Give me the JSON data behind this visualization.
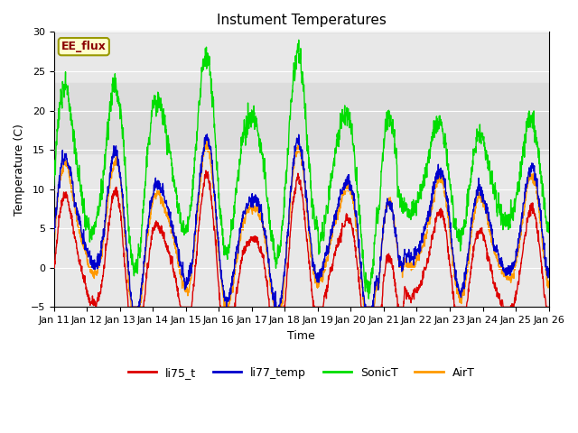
{
  "title": "Instument Temperatures",
  "xlabel": "Time",
  "ylabel": "Temperature (C)",
  "ylim": [
    -5,
    30
  ],
  "xlim": [
    0,
    15
  ],
  "x_tick_labels": [
    "Jan 11",
    "Jan 12",
    "Jan 13",
    "Jan 14",
    "Jan 15",
    "Jan 16",
    "Jan 17",
    "Jan 18",
    "Jan 19",
    "Jan 20",
    "Jan 21",
    "Jan 22",
    "Jan 23",
    "Jan 24",
    "Jan 25",
    "Jan 26"
  ],
  "shaded_band": [
    14.5,
    23.5
  ],
  "shaded_color": "#dcdcdc",
  "annotation_text": "EE_flux",
  "annotation_color": "#8b0000",
  "annotation_bg": "#ffffcc",
  "annotation_border": "#999900",
  "line_colors": {
    "li75_t": "#dd0000",
    "li77_temp": "#0000cc",
    "SonicT": "#00dd00",
    "AirT": "#ff9900"
  },
  "legend_labels": [
    "li75_t",
    "li77_temp",
    "SonicT",
    "AirT"
  ],
  "background_color": "#e8e8e8",
  "fig_bg": "#ffffff"
}
